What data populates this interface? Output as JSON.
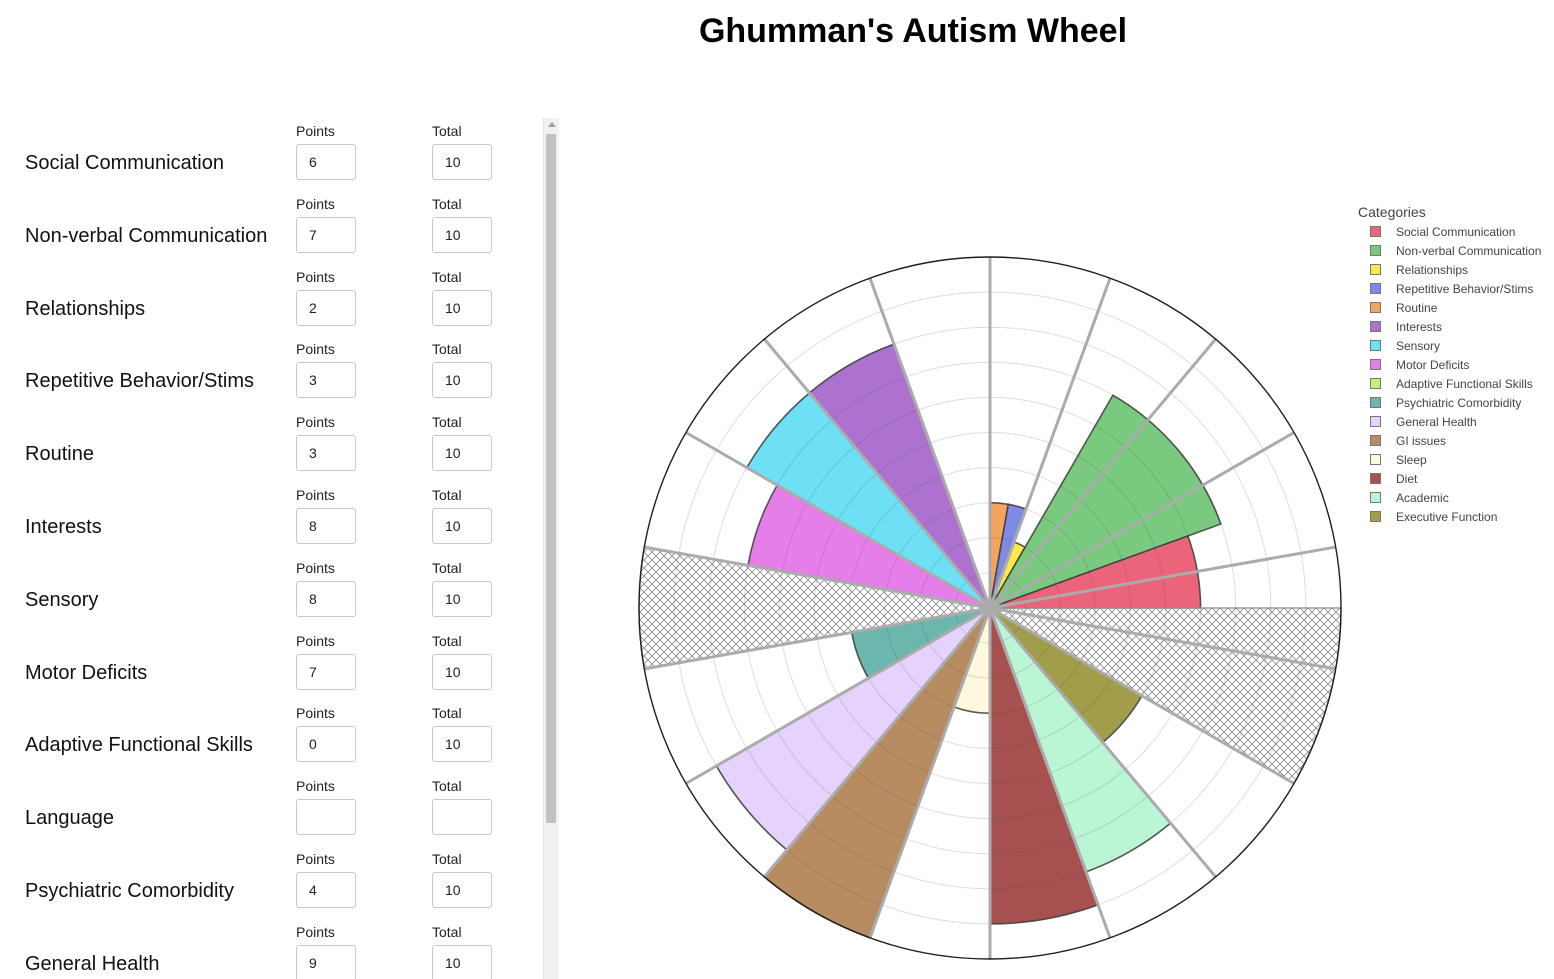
{
  "title": "Ghumman's Autism Wheel",
  "form": {
    "points_label": "Points",
    "total_label": "Total",
    "rows": [
      {
        "label": "Social Communication",
        "points": "6",
        "total": "10"
      },
      {
        "label": "Non-verbal Communication",
        "points": "7",
        "total": "10"
      },
      {
        "label": "Relationships",
        "points": "2",
        "total": "10"
      },
      {
        "label": "Repetitive Behavior/Stims",
        "points": "3",
        "total": "10"
      },
      {
        "label": "Routine",
        "points": "3",
        "total": "10"
      },
      {
        "label": "Interests",
        "points": "8",
        "total": "10"
      },
      {
        "label": "Sensory",
        "points": "8",
        "total": "10"
      },
      {
        "label": "Motor Deficits",
        "points": "7",
        "total": "10"
      },
      {
        "label": "Adaptive Functional Skills",
        "points": "0",
        "total": "10"
      },
      {
        "label": "Language",
        "points": "",
        "total": ""
      },
      {
        "label": "Psychiatric Comorbidity",
        "points": "4",
        "total": "10"
      },
      {
        "label": "General Health",
        "points": "9",
        "total": "10"
      }
    ]
  },
  "legend": {
    "title": "Categories",
    "items": [
      {
        "label": "Social Communication",
        "color": "#ec6479"
      },
      {
        "label": "Non-verbal Communication",
        "color": "#79c97e"
      },
      {
        "label": "Relationships",
        "color": "#fbe84f"
      },
      {
        "label": "Repetitive Behavior/Stims",
        "color": "#7e8ae6"
      },
      {
        "label": "Routine",
        "color": "#f3a45e"
      },
      {
        "label": "Interests",
        "color": "#ad72cf"
      },
      {
        "label": "Sensory",
        "color": "#6de0f5"
      },
      {
        "label": "Motor Deficits",
        "color": "#e67ee9"
      },
      {
        "label": "Adaptive Functional Skills",
        "color": "#c9ec7a"
      },
      {
        "label": "Psychiatric Comorbidity",
        "color": "#6bb6ad"
      },
      {
        "label": "General Health",
        "color": "#e5d3fd"
      },
      {
        "label": "GI issues",
        "color": "#b78c60"
      },
      {
        "label": "Sleep",
        "color": "#fef9dd"
      },
      {
        "label": "Diet",
        "color": "#a6514f"
      },
      {
        "label": "Academic",
        "color": "#baf5d6"
      },
      {
        "label": "Executive Function",
        "color": "#a19d4b"
      }
    ]
  },
  "chart_data": {
    "type": "polar-bar",
    "radial_range": [
      0,
      10
    ],
    "grid": true,
    "legend_position": "right",
    "sectors": [
      {
        "name": "Routine",
        "value": 3,
        "start_deg": 0,
        "end_deg": 10,
        "color": "#f3a45e"
      },
      {
        "name": "Repetitive Behavior/Stims",
        "value": 3,
        "start_deg": 10,
        "end_deg": 20,
        "color": "#7e8ae6"
      },
      {
        "name": "Relationships",
        "value": 2,
        "start_deg": 20,
        "end_deg": 30,
        "color": "#fbe84f"
      },
      {
        "name": "Non-verbal Communication",
        "value": 7,
        "start_deg": 30,
        "end_deg": 70,
        "color": "#79c97e"
      },
      {
        "name": "Social Communication",
        "value": 6,
        "start_deg": 70,
        "end_deg": 90,
        "color": "#ec6479"
      },
      {
        "name": "Language",
        "value": 10,
        "start_deg": 90,
        "end_deg": 120,
        "hatched": true
      },
      {
        "name": "Executive Function",
        "value": 5,
        "start_deg": 120,
        "end_deg": 140,
        "color": "#a19d4b"
      },
      {
        "name": "Academic",
        "value": 8,
        "start_deg": 140,
        "end_deg": 160,
        "color": "#baf5d6"
      },
      {
        "name": "Diet",
        "value": 9,
        "start_deg": 160,
        "end_deg": 180,
        "color": "#a6514f"
      },
      {
        "name": "Sleep",
        "value": 3,
        "start_deg": 180,
        "end_deg": 200,
        "color": "#fef9dd"
      },
      {
        "name": "GI issues",
        "value": 10,
        "start_deg": 200,
        "end_deg": 220,
        "color": "#b78c60"
      },
      {
        "name": "General Health",
        "value": 9,
        "start_deg": 220,
        "end_deg": 240,
        "color": "#e5d3fd"
      },
      {
        "name": "Psychiatric Comorbidity",
        "value": 4,
        "start_deg": 240,
        "end_deg": 260,
        "color": "#6bb6ad"
      },
      {
        "name": "Adaptive Functional Skills",
        "value": 10,
        "start_deg": 260,
        "end_deg": 280,
        "hatched": true
      },
      {
        "name": "Motor Deficits",
        "value": 7,
        "start_deg": 280,
        "end_deg": 300,
        "color": "#e67ee9"
      },
      {
        "name": "Sensory",
        "value": 8,
        "start_deg": 300,
        "end_deg": 320,
        "color": "#6de0f5"
      },
      {
        "name": "Interests",
        "value": 8,
        "start_deg": 320,
        "end_deg": 340,
        "color": "#ad72cf"
      }
    ],
    "divider_deg": [
      0,
      20,
      40,
      60,
      80,
      100,
      120,
      140,
      160,
      180,
      200,
      220,
      240,
      260,
      280,
      300,
      320,
      340
    ]
  }
}
